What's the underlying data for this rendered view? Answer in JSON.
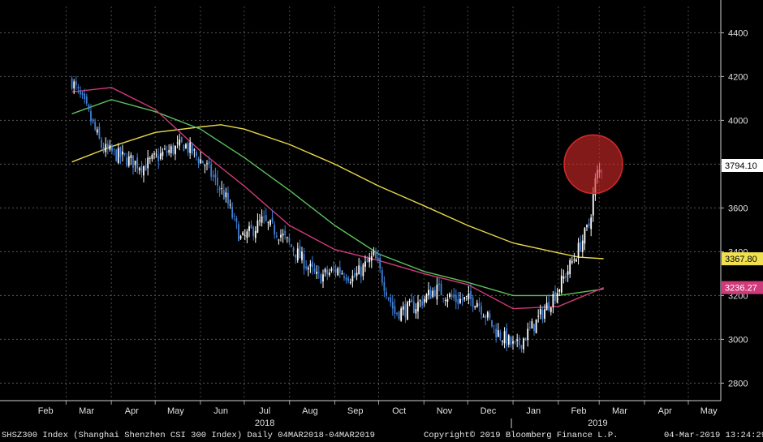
{
  "chart_data": {
    "type": "candlestick",
    "ticker": "SHSZ300 Index",
    "x_months": [
      "Feb",
      "Mar",
      "Apr",
      "May",
      "Jun",
      "Jul",
      "Aug",
      "Sep",
      "Oct",
      "Nov",
      "Dec",
      "Jan",
      "Feb",
      "Mar",
      "Apr",
      "May"
    ],
    "x_years": [
      "2018",
      "2019"
    ],
    "y_ticks": [
      2800,
      3000,
      3200,
      3400,
      3600,
      3800,
      4000,
      4200,
      4400
    ],
    "ylim": [
      2720,
      4520
    ],
    "grid": true,
    "price_close_path": [
      [
        "2018-03-05",
        4180
      ],
      [
        "2018-03-15",
        4050
      ],
      [
        "2018-03-26",
        3870
      ],
      [
        "2018-04-09",
        3830
      ],
      [
        "2018-04-23",
        3790
      ],
      [
        "2018-05-07",
        3850
      ],
      [
        "2018-05-21",
        3890
      ],
      [
        "2018-06-04",
        3800
      ],
      [
        "2018-06-18",
        3650
      ],
      [
        "2018-06-29",
        3450
      ],
      [
        "2018-07-13",
        3540
      ],
      [
        "2018-07-26",
        3480
      ],
      [
        "2018-08-09",
        3370
      ],
      [
        "2018-08-20",
        3280
      ],
      [
        "2018-09-03",
        3320
      ],
      [
        "2018-09-14",
        3280
      ],
      [
        "2018-09-28",
        3380
      ],
      [
        "2018-10-12",
        3120
      ],
      [
        "2018-10-26",
        3150
      ],
      [
        "2018-11-09",
        3230
      ],
      [
        "2018-11-23",
        3180
      ],
      [
        "2018-12-07",
        3180
      ],
      [
        "2018-12-20",
        3040
      ],
      [
        "2019-01-03",
        2960
      ],
      [
        "2019-01-17",
        3080
      ],
      [
        "2019-01-31",
        3220
      ],
      [
        "2019-02-14",
        3400
      ],
      [
        "2019-02-22",
        3520
      ],
      [
        "2019-02-27",
        3750
      ],
      [
        "2019-03-04",
        3794
      ]
    ],
    "series": [
      {
        "name": "",
        "color": "#e8d84a",
        "values": [
          [
            "2018-03-05",
            3810
          ],
          [
            "2018-04-01",
            3880
          ],
          [
            "2018-05-01",
            3945
          ],
          [
            "2018-06-01",
            3970
          ],
          [
            "2018-06-15",
            3980
          ],
          [
            "2018-07-01",
            3960
          ],
          [
            "2018-08-01",
            3890
          ],
          [
            "2018-09-01",
            3800
          ],
          [
            "2018-10-01",
            3700
          ],
          [
            "2018-11-01",
            3610
          ],
          [
            "2018-12-01",
            3520
          ],
          [
            "2019-01-01",
            3440
          ],
          [
            "2019-02-01",
            3395
          ],
          [
            "2019-02-15",
            3375
          ],
          [
            "2019-03-04",
            3368
          ]
        ]
      },
      {
        "name": "",
        "color": "#5cc05c",
        "values": [
          [
            "2018-03-05",
            4030
          ],
          [
            "2018-04-01",
            4095
          ],
          [
            "2018-05-01",
            4040
          ],
          [
            "2018-06-01",
            3960
          ],
          [
            "2018-07-01",
            3830
          ],
          [
            "2018-08-01",
            3680
          ],
          [
            "2018-09-01",
            3520
          ],
          [
            "2018-10-01",
            3390
          ],
          [
            "2018-11-01",
            3310
          ],
          [
            "2018-12-01",
            3260
          ],
          [
            "2019-01-01",
            3200
          ],
          [
            "2019-02-01",
            3200
          ],
          [
            "2019-03-04",
            3230
          ]
        ]
      },
      {
        "name": "",
        "color": "#d03a7a",
        "values": [
          [
            "2018-03-05",
            4130
          ],
          [
            "2018-04-01",
            4150
          ],
          [
            "2018-05-01",
            4050
          ],
          [
            "2018-06-01",
            3860
          ],
          [
            "2018-07-01",
            3700
          ],
          [
            "2018-08-01",
            3520
          ],
          [
            "2018-09-01",
            3410
          ],
          [
            "2018-10-01",
            3360
          ],
          [
            "2018-11-01",
            3300
          ],
          [
            "2018-12-01",
            3250
          ],
          [
            "2019-01-01",
            3140
          ],
          [
            "2019-02-01",
            3150
          ],
          [
            "2019-03-04",
            3236
          ]
        ]
      }
    ],
    "value_labels": [
      {
        "text": "3794.10",
        "value": 3794.1,
        "bg": "#ffffff",
        "fg": "#000000"
      },
      {
        "text": "3367.80",
        "value": 3367.8,
        "bg": "#f0e050",
        "fg": "#000000"
      },
      {
        "text": "3236.27",
        "value": 3236.27,
        "bg": "#d03a7a",
        "fg": "#ffffff"
      }
    ],
    "highlight": {
      "date": "2019-02-25",
      "value": 3800,
      "color": "#d42a2a"
    }
  },
  "footer": {
    "left": "SHSZ300 Index (Shanghai Shenzhen CSI 300 Index)  Daily 04MAR2018-04MAR2019",
    "center": "Copyright© 2019 Bloomberg Finance L.P.",
    "right": "04-Mar-2019 13:24:29"
  }
}
